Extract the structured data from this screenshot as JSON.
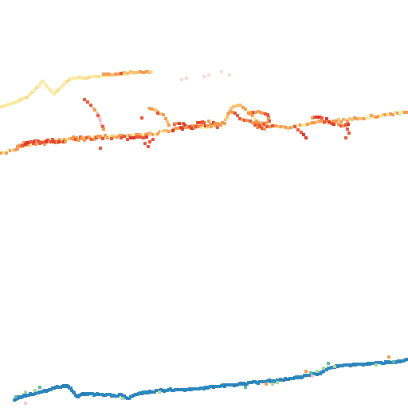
{
  "palette": {
    "background": "#ffffff",
    "pale_yellow": "#fbe9a0",
    "light_orange": "#fdc070",
    "orange": "#f79a50",
    "red_orange": "#e8543a",
    "red": "#e0352a",
    "pink": "#f7c4c4",
    "light_pink": "#f9d8d8",
    "blue": "#2b87c0",
    "light_green": "#a8d89a",
    "teal": "#5cb8a0"
  },
  "layers": [
    {
      "name": "pale-yellow-track",
      "color_key": "pale_yellow"
    },
    {
      "name": "orange-track",
      "color_key": "light_orange"
    },
    {
      "name": "red-segments",
      "color_key": "red_orange"
    },
    {
      "name": "blue-track",
      "color_key": "blue"
    }
  ]
}
